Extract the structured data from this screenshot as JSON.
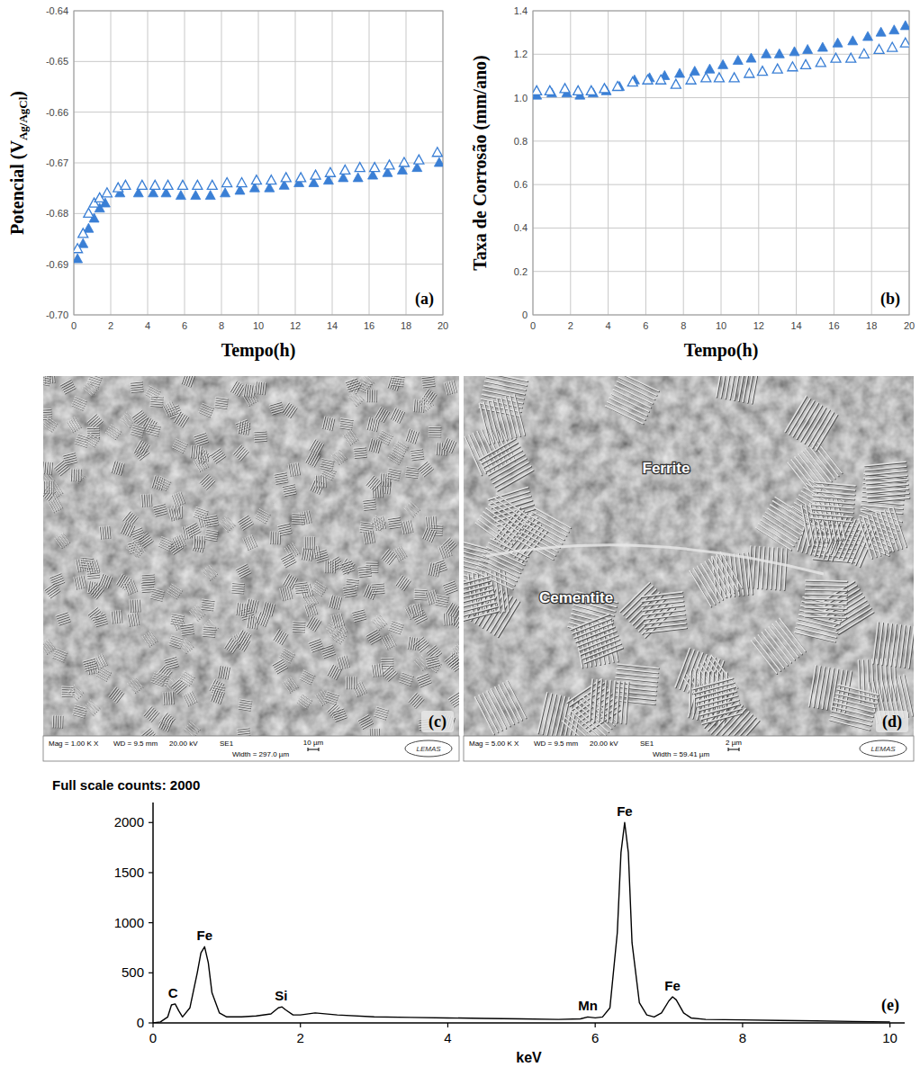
{
  "chart_data": [
    {
      "type": "scatter",
      "panel_label": "(a)",
      "x_label": "Tempo(h)",
      "y_label": [
        "Potencial (V",
        "Ag/AgCl",
        ")"
      ],
      "xlim": [
        0,
        20
      ],
      "ylim": [
        -0.7,
        -0.64
      ],
      "xticks": [
        0,
        2,
        4,
        6,
        8,
        10,
        12,
        14,
        16,
        18,
        20
      ],
      "yticks": [
        {
          "value": -0.7,
          "label": "-0.70"
        },
        -0.69,
        -0.68,
        -0.67,
        -0.66,
        -0.65,
        -0.64
      ],
      "grid": true,
      "series": [
        {
          "color": "#3a7fd5",
          "marker": "triangle",
          "x": [
            0.2,
            0.5,
            0.8,
            1.1,
            1.4,
            1.7,
            2.5,
            3.5,
            4.3,
            5.0,
            5.8,
            6.6,
            7.4,
            8.2,
            9.0,
            9.8,
            10.6,
            11.4,
            12.2,
            13.0,
            13.8,
            14.6,
            15.4,
            16.2,
            17.0,
            17.8,
            18.6,
            19.8
          ],
          "values": [
            -0.689,
            -0.686,
            -0.683,
            -0.681,
            -0.679,
            -0.678,
            -0.676,
            -0.676,
            -0.676,
            -0.676,
            -0.6765,
            -0.6765,
            -0.6765,
            -0.676,
            -0.6755,
            -0.675,
            -0.675,
            -0.6745,
            -0.674,
            -0.674,
            -0.6735,
            -0.673,
            -0.673,
            -0.6725,
            -0.672,
            -0.6715,
            -0.671,
            -0.67
          ]
        },
        {
          "color": "#3a7fd5",
          "marker": "triangle-open",
          "x": [
            0.2,
            0.5,
            0.8,
            1.1,
            1.4,
            1.8,
            2.4,
            2.8,
            3.7,
            4.4,
            5.1,
            5.9,
            6.7,
            7.5,
            8.3,
            9.1,
            9.9,
            10.7,
            11.5,
            12.3,
            13.1,
            13.9,
            14.7,
            15.5,
            16.3,
            17.1,
            17.9,
            18.7,
            19.7
          ],
          "values": [
            -0.687,
            -0.684,
            -0.68,
            -0.678,
            -0.677,
            -0.676,
            -0.675,
            -0.6745,
            -0.6745,
            -0.6745,
            -0.6745,
            -0.6745,
            -0.6745,
            -0.6745,
            -0.674,
            -0.674,
            -0.6735,
            -0.6735,
            -0.673,
            -0.673,
            -0.6725,
            -0.672,
            -0.6715,
            -0.671,
            -0.671,
            -0.6705,
            -0.67,
            -0.6695,
            -0.668
          ]
        }
      ]
    },
    {
      "type": "scatter",
      "panel_label": "(b)",
      "x_label": "Tempo(h)",
      "y_label": [
        "Taxa de Corrosão (mm/ano)"
      ],
      "xlim": [
        0,
        20
      ],
      "ylim": [
        0,
        1.4
      ],
      "xticks": [
        0,
        2,
        4,
        6,
        8,
        10,
        12,
        14,
        16,
        18,
        20
      ],
      "yticks": [
        0,
        0.2,
        0.4,
        0.6,
        0.8,
        {
          "value": 1,
          "label": "1.0"
        },
        1.2,
        1.4
      ],
      "grid": true,
      "series": [
        {
          "color": "#3a7fd5",
          "marker": "triangle",
          "x": [
            0.2,
            1.0,
            1.8,
            2.5,
            3.2,
            3.9,
            4.6,
            5.4,
            6.2,
            7.0,
            7.8,
            8.6,
            9.4,
            10.1,
            10.9,
            11.6,
            12.4,
            13.1,
            13.9,
            14.6,
            15.4,
            16.2,
            17.0,
            17.8,
            18.5,
            19.2,
            19.8
          ],
          "values": [
            1.01,
            1.02,
            1.02,
            1.01,
            1.02,
            1.03,
            1.05,
            1.08,
            1.09,
            1.1,
            1.11,
            1.12,
            1.13,
            1.15,
            1.17,
            1.18,
            1.2,
            1.2,
            1.21,
            1.22,
            1.23,
            1.25,
            1.26,
            1.28,
            1.3,
            1.31,
            1.33
          ]
        },
        {
          "color": "#3a7fd5",
          "marker": "triangle-open",
          "x": [
            0.2,
            0.9,
            1.7,
            2.4,
            3.1,
            3.8,
            4.5,
            5.3,
            6.1,
            6.8,
            7.6,
            8.4,
            9.2,
            9.9,
            10.7,
            11.5,
            12.2,
            13.0,
            13.8,
            14.5,
            15.3,
            16.1,
            16.9,
            17.6,
            18.4,
            19.1,
            19.8
          ],
          "values": [
            1.03,
            1.03,
            1.04,
            1.03,
            1.03,
            1.04,
            1.05,
            1.07,
            1.08,
            1.08,
            1.06,
            1.08,
            1.09,
            1.09,
            1.09,
            1.11,
            1.12,
            1.13,
            1.14,
            1.15,
            1.16,
            1.18,
            1.18,
            1.2,
            1.22,
            1.23,
            1.25
          ]
        }
      ]
    },
    {
      "type": "line",
      "title": "Full scale counts: 2000",
      "panel_label": "(e)",
      "x_label": "keV",
      "xlim": [
        0,
        10.2
      ],
      "ylim": [
        0,
        2200
      ],
      "xticks": [
        0,
        2,
        4,
        6,
        8,
        10
      ],
      "yticks": [
        0,
        500,
        1000,
        1500,
        2000
      ],
      "grid": false,
      "series": [
        {
          "color": "#000000",
          "x": [
            0,
            0.1,
            0.2,
            0.25,
            0.3,
            0.35,
            0.4,
            0.5,
            0.6,
            0.65,
            0.7,
            0.75,
            0.8,
            0.9,
            1.0,
            1.2,
            1.4,
            1.6,
            1.7,
            1.75,
            1.8,
            1.9,
            2.0,
            2.2,
            2.5,
            3,
            3.5,
            4,
            4.5,
            5,
            5.5,
            5.8,
            5.9,
            6.0,
            6.1,
            6.2,
            6.3,
            6.35,
            6.4,
            6.45,
            6.5,
            6.6,
            6.7,
            6.8,
            6.9,
            7.0,
            7.05,
            7.1,
            7.2,
            7.3,
            7.5,
            8,
            8.5,
            9,
            9.5,
            10
          ],
          "values": [
            0,
            10,
            60,
            180,
            190,
            120,
            60,
            150,
            500,
            700,
            760,
            600,
            300,
            100,
            60,
            60,
            70,
            90,
            150,
            160,
            130,
            80,
            80,
            100,
            80,
            60,
            55,
            50,
            45,
            40,
            35,
            40,
            60,
            50,
            60,
            150,
            900,
            1700,
            2000,
            1700,
            800,
            200,
            80,
            60,
            100,
            220,
            260,
            230,
            100,
            50,
            35,
            30,
            25,
            20,
            15,
            10
          ]
        }
      ],
      "annotations": [
        {
          "text": "C",
          "x": 0.27,
          "y": 190
        },
        {
          "text": "Fe",
          "x": 0.7,
          "y": 760
        },
        {
          "text": "Si",
          "x": 1.74,
          "y": 160
        },
        {
          "text": "Mn",
          "x": 5.9,
          "y": 60
        },
        {
          "text": "Fe",
          "x": 6.4,
          "y": 2000
        },
        {
          "text": "Fe",
          "x": 7.05,
          "y": 260
        }
      ]
    }
  ],
  "images": [
    {
      "panel_label": "(c)",
      "info": [
        "Mag = 1.00 K X",
        "WD = 9.5 mm",
        "20.00 kV",
        "SE1",
        "Width = 297.0 µm"
      ],
      "scale_bar": "10 µm",
      "logo": "LEMAS",
      "labels": []
    },
    {
      "panel_label": "(d)",
      "info": [
        "Mag = 5.00 K X",
        "WD = 9.5 mm",
        "20.00 kV",
        "SE1",
        "Width = 59.41 µm"
      ],
      "scale_bar": "2 µm",
      "logo": "LEMAS",
      "labels": [
        {
          "text": "Ferrite"
        },
        {
          "text": "Cementite"
        }
      ]
    }
  ]
}
